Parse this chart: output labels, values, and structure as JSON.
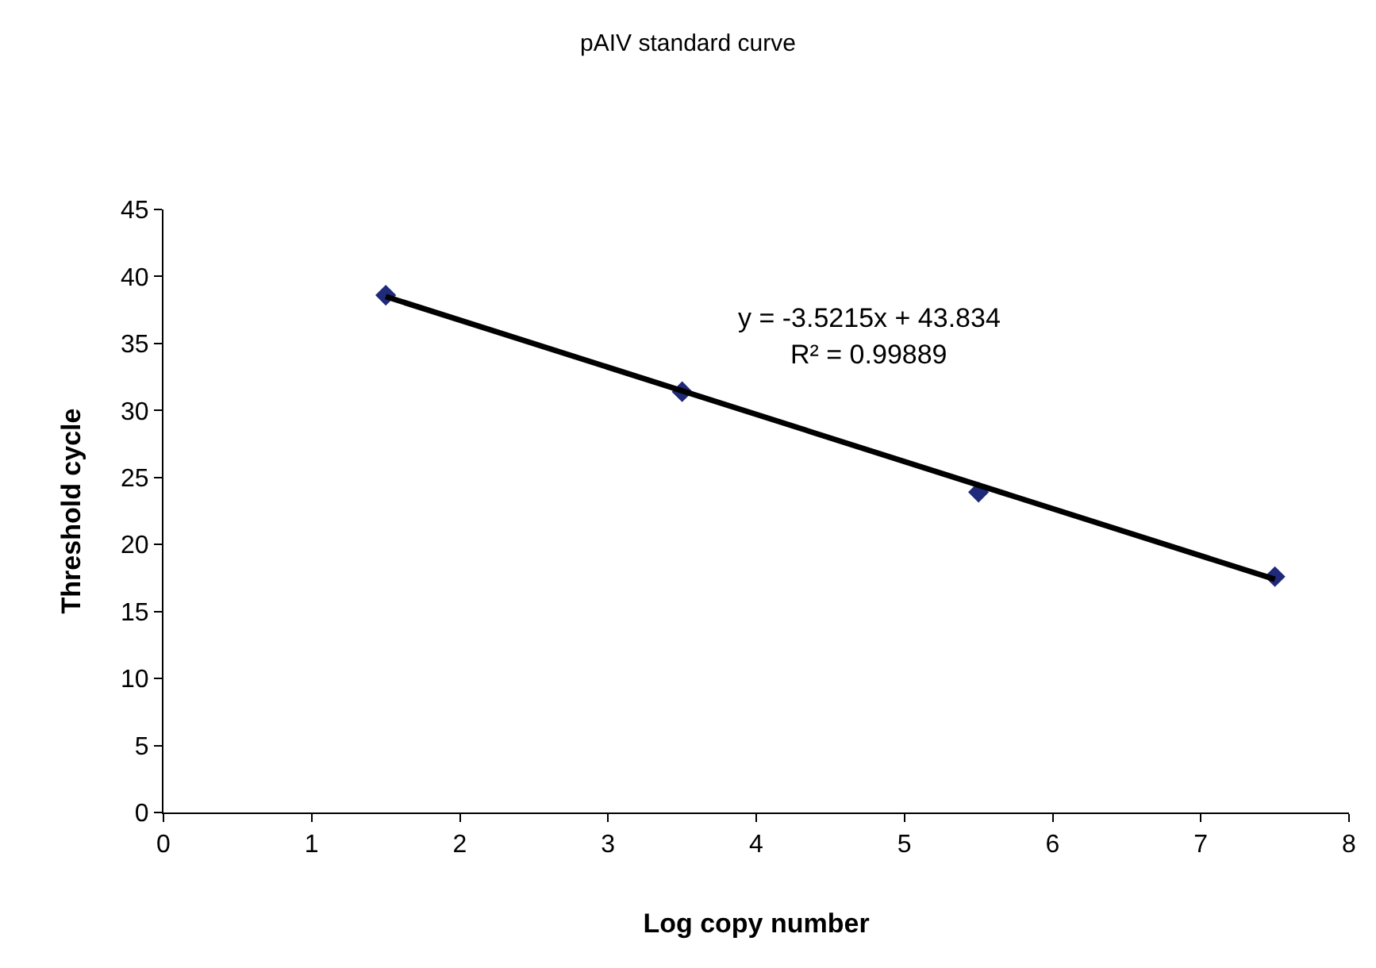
{
  "chart_data": {
    "type": "scatter",
    "title": "pAIV standard curve",
    "xlabel": "Log copy number",
    "ylabel": "Threshold cycle",
    "xlim": [
      0,
      8
    ],
    "xticks": [
      0,
      1,
      2,
      3,
      4,
      5,
      6,
      7,
      8
    ],
    "ylim": [
      0,
      45
    ],
    "yticks": [
      0,
      5,
      10,
      15,
      20,
      25,
      30,
      35,
      40,
      45
    ],
    "series": [
      {
        "color": "#1f2a7a",
        "marker": "diamond",
        "x": [
          1.5,
          3.5,
          5.5,
          7.5
        ],
        "values": [
          38.6,
          31.4,
          23.9,
          17.6
        ]
      },
      {
        "type": "line",
        "color": "#000000",
        "marker": "none",
        "line_style": "solid",
        "x": [
          1.5,
          7.5
        ],
        "values": [
          38.5,
          17.4
        ]
      }
    ],
    "annotations": [
      "y = -3.5215x + 43.834",
      "R² = 0.99889"
    ]
  }
}
